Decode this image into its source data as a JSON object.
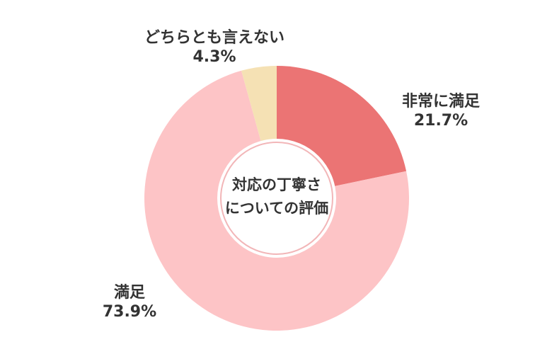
{
  "chart_data": {
    "type": "pie",
    "title": "対応の丁寧さについての評価",
    "title_lines": [
      "対応の丁寧さ",
      "についての評価"
    ],
    "categories": [
      "非常に満足",
      "満足",
      "どちらとも言えない"
    ],
    "values": [
      21.7,
      73.9,
      4.3
    ],
    "value_labels": [
      "21.7%",
      "73.9%",
      "4.3%"
    ],
    "colors": [
      "#EB7474",
      "#FDC4C6",
      "#F5E1B4"
    ],
    "donut": true,
    "legend": "none"
  }
}
